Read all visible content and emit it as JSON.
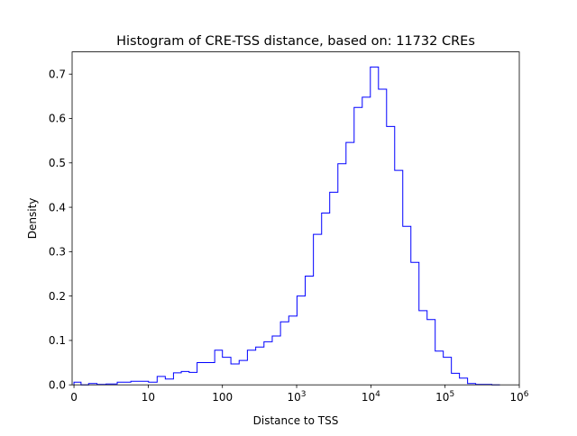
{
  "chart_data": {
    "type": "histogram-step",
    "title": "Histogram of CRE-TSS distance, based on: 11732 CREs",
    "xlabel": "Distance to TSS",
    "ylabel": "Density",
    "x_scale": "symlog",
    "xlim": [
      -0.25,
      1000000
    ],
    "ylim": [
      0,
      0.75
    ],
    "line_color": "#0000ff",
    "x_ticks": [
      {
        "value": 0,
        "label": "0",
        "exp": ""
      },
      {
        "value": 10,
        "label": "10",
        "exp": ""
      },
      {
        "value": 100,
        "label": "100",
        "exp": ""
      },
      {
        "value": 1000,
        "label": "10",
        "exp": "3"
      },
      {
        "value": 10000,
        "label": "10",
        "exp": "4"
      },
      {
        "value": 100000,
        "label": "10",
        "exp": "5"
      },
      {
        "value": 1000000,
        "label": "10",
        "exp": "6"
      }
    ],
    "y_ticks": [
      {
        "value": 0.0,
        "label": "0.0"
      },
      {
        "value": 0.1,
        "label": "0.1"
      },
      {
        "value": 0.2,
        "label": "0.2"
      },
      {
        "value": 0.3,
        "label": "0.3"
      },
      {
        "value": 0.4,
        "label": "0.4"
      },
      {
        "value": 0.5,
        "label": "0.5"
      },
      {
        "value": 0.6,
        "label": "0.6"
      },
      {
        "value": 0.7,
        "label": "0.7"
      }
    ],
    "bin_edges": [
      0,
      0.95,
      1.97,
      3.1,
      4.33,
      5.83,
      7.66,
      10.1,
      13.2,
      17.0,
      21.9,
      27.9,
      35.6,
      45.6,
      59.8,
      78.7,
      100.0,
      130,
      168,
      217,
      281,
      363,
      469,
      606,
      783,
      1011,
      1305,
      1683,
      2170,
      2790,
      3595,
      4627,
      5950,
      7655,
      9845,
      12660,
      16280,
      20930,
      26910,
      34620,
      44520,
      57250,
      73580,
      94600,
      121600,
      156300,
      200900,
      258200,
      331900,
      426600,
      548300
    ],
    "values": [
      0.006,
      0.0,
      0.003,
      0.001,
      0.002,
      0.006,
      0.008,
      0.006,
      0.019,
      0.013,
      0.027,
      0.03,
      0.028,
      0.05,
      0.05,
      0.078,
      0.062,
      0.047,
      0.055,
      0.078,
      0.085,
      0.097,
      0.11,
      0.142,
      0.155,
      0.2,
      0.245,
      0.339,
      0.387,
      0.434,
      0.498,
      0.546,
      0.625,
      0.648,
      0.716,
      0.666,
      0.582,
      0.483,
      0.357,
      0.276,
      0.167,
      0.147,
      0.076,
      0.062,
      0.026,
      0.015,
      0.003,
      0.001,
      0.001,
      0.0
    ]
  }
}
